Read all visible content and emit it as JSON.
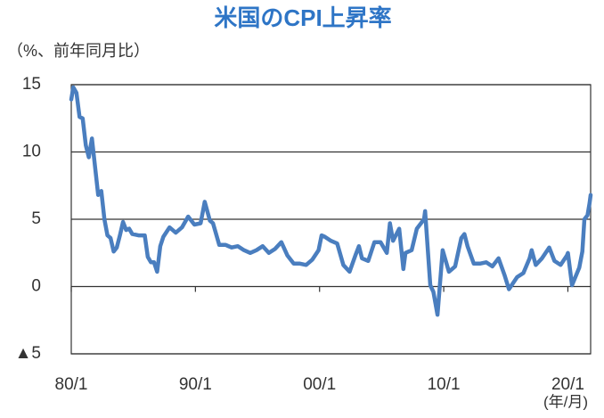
{
  "chart_data": {
    "type": "line",
    "title": "米国のCPI上昇率",
    "y_axis_label": "（%、前年同月比）",
    "x_axis_label": "(年/月)",
    "x": [
      "1980-01",
      "1980-03",
      "1980-06",
      "1980-09",
      "1980-12",
      "1981-03",
      "1981-06",
      "1981-09",
      "1981-12",
      "1982-03",
      "1982-06",
      "1982-09",
      "1982-12",
      "1983-03",
      "1983-06",
      "1983-09",
      "1983-12",
      "1984-03",
      "1984-06",
      "1984-09",
      "1984-12",
      "1985-06",
      "1985-12",
      "1986-03",
      "1986-06",
      "1986-09",
      "1986-12",
      "1987-03",
      "1987-06",
      "1987-12",
      "1988-06",
      "1988-12",
      "1989-06",
      "1989-12",
      "1990-06",
      "1990-10",
      "1991-03",
      "1991-06",
      "1991-12",
      "1992-06",
      "1992-12",
      "1993-06",
      "1993-12",
      "1994-06",
      "1994-12",
      "1995-06",
      "1995-12",
      "1996-06",
      "1996-12",
      "1997-06",
      "1997-12",
      "1998-06",
      "1998-12",
      "1999-06",
      "1999-12",
      "2000-03",
      "2000-06",
      "2000-12",
      "2001-06",
      "2001-12",
      "2002-06",
      "2002-12",
      "2003-03",
      "2003-06",
      "2003-12",
      "2004-06",
      "2004-12",
      "2005-06",
      "2005-09",
      "2005-12",
      "2006-06",
      "2006-10",
      "2006-12",
      "2007-06",
      "2007-11",
      "2008-06",
      "2008-07",
      "2008-12",
      "2009-03",
      "2009-07",
      "2009-12",
      "2010-06",
      "2010-12",
      "2011-06",
      "2011-09",
      "2011-12",
      "2012-06",
      "2012-12",
      "2013-06",
      "2013-12",
      "2014-06",
      "2014-12",
      "2015-04",
      "2015-12",
      "2016-06",
      "2016-12",
      "2017-02",
      "2017-06",
      "2017-12",
      "2018-07",
      "2018-12",
      "2019-06",
      "2019-12",
      "2020-01",
      "2020-05",
      "2020-12",
      "2021-03",
      "2021-05",
      "2021-08",
      "2021-10",
      "2021-11"
    ],
    "values": [
      13.9,
      14.8,
      14.4,
      12.6,
      12.5,
      10.5,
      9.6,
      11.0,
      8.9,
      6.8,
      7.1,
      5.0,
      3.8,
      3.6,
      2.6,
      2.9,
      3.8,
      4.8,
      4.2,
      4.3,
      3.9,
      3.8,
      3.8,
      2.2,
      1.8,
      1.8,
      1.1,
      3.0,
      3.7,
      4.4,
      4.0,
      4.4,
      5.2,
      4.6,
      4.7,
      6.3,
      4.9,
      4.7,
      3.1,
      3.1,
      2.9,
      3.0,
      2.7,
      2.5,
      2.7,
      3.0,
      2.5,
      2.8,
      3.3,
      2.3,
      1.7,
      1.7,
      1.6,
      2.0,
      2.7,
      3.8,
      3.7,
      3.4,
      3.2,
      1.6,
      1.1,
      2.4,
      3.0,
      2.1,
      1.9,
      3.3,
      3.3,
      2.5,
      4.7,
      3.4,
      4.3,
      1.3,
      2.5,
      2.7,
      4.3,
      5.0,
      5.6,
      0.1,
      -0.4,
      -2.1,
      2.7,
      1.1,
      1.5,
      3.6,
      3.9,
      3.0,
      1.7,
      1.7,
      1.8,
      1.5,
      2.1,
      0.8,
      -0.2,
      0.7,
      1.0,
      2.1,
      2.7,
      1.6,
      2.1,
      2.9,
      1.9,
      1.6,
      2.3,
      2.5,
      0.1,
      1.4,
      2.6,
      5.0,
      5.3,
      6.2,
      6.8
    ],
    "color": "#4a7ebf",
    "xlim": [
      "1980-01",
      "2021-11"
    ],
    "xticks": [
      {
        "value": "1980-01",
        "label": "80/1"
      },
      {
        "value": "1990-01",
        "label": "90/1"
      },
      {
        "value": "2000-01",
        "label": "00/1"
      },
      {
        "value": "2010-01",
        "label": "10/1"
      },
      {
        "value": "2020-01",
        "label": "20/1"
      }
    ],
    "ylim": [
      -5,
      15
    ],
    "yticks": [
      15,
      10,
      5,
      0,
      {
        "value": -5,
        "label": "▲5"
      }
    ],
    "grid": true
  }
}
